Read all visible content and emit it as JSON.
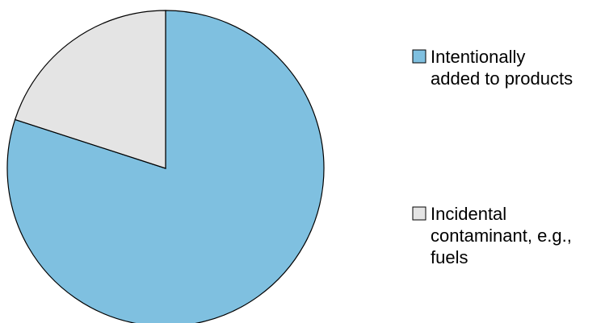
{
  "chart_data": {
    "type": "pie",
    "title": "",
    "slices": [
      {
        "label": "Intentionally added to products",
        "label_lines": [
          "Intentionally",
          "added to products"
        ],
        "value": 80,
        "color": "#7fc0e0"
      },
      {
        "label": "Incidental contaminant, e.g., fuels",
        "label_lines": [
          "Incidental",
          "contaminant, e.g.,",
          "fuels"
        ],
        "value": 20,
        "color": "#e4e4e4"
      }
    ],
    "start_angle_deg": 0,
    "direction": "clockwise",
    "legend_position": "right",
    "edge_color": "#000000"
  }
}
